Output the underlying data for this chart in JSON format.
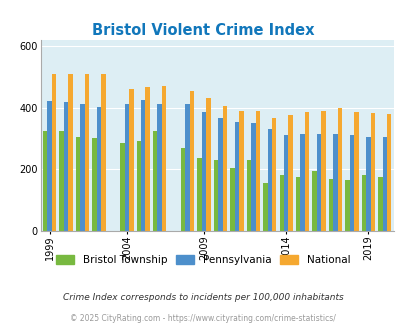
{
  "title": "Bristol Violent Crime Index",
  "years": [
    1999,
    2000,
    2001,
    2002,
    2004,
    2005,
    2006,
    2008,
    2009,
    2010,
    2011,
    2012,
    2013,
    2014,
    2015,
    2016,
    2017,
    2018,
    2019,
    2020
  ],
  "bristol": [
    325,
    325,
    305,
    300,
    285,
    290,
    325,
    270,
    235,
    230,
    205,
    230,
    155,
    180,
    175,
    195,
    170,
    165,
    180,
    175
  ],
  "pennsylvania": [
    420,
    418,
    410,
    403,
    413,
    425,
    413,
    410,
    385,
    365,
    352,
    350,
    330,
    310,
    315,
    315,
    315,
    310,
    305,
    305
  ],
  "national": [
    510,
    510,
    510,
    510,
    460,
    465,
    470,
    455,
    430,
    405,
    390,
    390,
    365,
    375,
    385,
    390,
    400,
    385,
    382,
    380
  ],
  "gaps_after": [
    3,
    7
  ],
  "bar_width": 0.27,
  "colors": {
    "bristol": "#78b940",
    "pennsylvania": "#4d8fcb",
    "national": "#f5a830"
  },
  "bg_color": "#ddeef4",
  "ylim": [
    0,
    620
  ],
  "yticks": [
    0,
    200,
    400,
    600
  ],
  "xtick_years": [
    1999,
    2004,
    2009,
    2014,
    2019
  ],
  "subtitle": "Crime Index corresponds to incidents per 100,000 inhabitants",
  "footer": "© 2025 CityRating.com - https://www.cityrating.com/crime-statistics/",
  "title_color": "#1177bb",
  "subtitle_color": "#333333",
  "footer_color": "#999999",
  "legend_labels": [
    "Bristol Township",
    "Pennsylvania",
    "National"
  ]
}
